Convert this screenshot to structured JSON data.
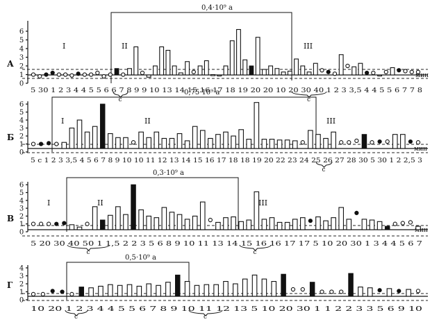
{
  "chart_data": [
    {
      "type": "bar",
      "panel_letter": "А",
      "ylim": [
        0,
        6
      ],
      "yticks": [
        "0",
        "1",
        "2",
        "3",
        "4",
        "5",
        "6"
      ],
      "bracket_label": "0,4·10⁹ а",
      "phase_labels": [
        "I",
        "II",
        "III"
      ],
      "unit_label": "мин",
      "x_tick_label": "5 30 1 2 3 4 4 5 5 6 6 7 8 9 9 10 13 14 15 16 17 18 19 20 20 10 20 30 40 1 2 3 3,5 4 4 5 5 6 7 7 8",
      "interval_labels": [
        "с",
        "с"
      ],
      "values": [
        1.0,
        0.8,
        1.0,
        1.2,
        1.0,
        1.0,
        0.9,
        1.1,
        1.0,
        1.0,
        1.2,
        0.8,
        1.0,
        1.7,
        1.0,
        1.7,
        4.2,
        1.2,
        0.7,
        2.0,
        4.2,
        3.8,
        2.0,
        1.2,
        2.5,
        1.3,
        2.0,
        2.6,
        1.0,
        0.9,
        2.0,
        4.9,
        6.2,
        2.7,
        2.0,
        5.3,
        1.6,
        2.0,
        1.7,
        1.3,
        1.4,
        2.8,
        2.0,
        1.3,
        2.3,
        1.5,
        1.3,
        1.1,
        3.3,
        2.0,
        1.9,
        2.3,
        1.2,
        1.2,
        0.9,
        1.3,
        1.8,
        1.5,
        1.4,
        1.3,
        1.3
      ],
      "marks": [
        "o",
        "o",
        "f",
        "f",
        "o",
        "o",
        "o",
        "f",
        "o",
        "o",
        "o",
        "o",
        "o",
        "F",
        "o",
        "B",
        "B",
        "o",
        "B",
        "B",
        "B",
        "B",
        "B",
        "B",
        "B",
        "o",
        "B",
        "B",
        "B",
        "B",
        "B",
        "B",
        "B",
        "B",
        "F",
        "B",
        "B",
        "B",
        "B",
        "B",
        "B",
        "B",
        "B",
        "B",
        "B",
        "o",
        "f",
        "o",
        "B",
        "o",
        "B",
        "B",
        "f",
        "o",
        "B",
        "o",
        "B",
        "f",
        "o",
        "o",
        "o"
      ]
    },
    {
      "type": "bar",
      "panel_letter": "Б",
      "ylim": [
        0,
        6
      ],
      "yticks": [
        "0",
        "1",
        "2",
        "3",
        "4",
        "5",
        "6"
      ],
      "bracket_label": "0,75·10⁹ а",
      "phase_labels": [
        "I",
        "II",
        "III"
      ],
      "unit_label": "мин",
      "x_tick_label": "5 с 1 2 3 3,5 4 5 6 7 8 9 10 10 11 12 13 14 15 16 17 18 18 19 20 22 23 24 25 26 27 28 30 5 30 1 2 2,5 3",
      "interval_labels": [
        "с"
      ],
      "values": [
        1.0,
        1.0,
        1.1,
        1.0,
        1.2,
        3.0,
        4.0,
        2.5,
        3.2,
        6.0,
        2.3,
        1.8,
        1.8,
        1.2,
        2.5,
        1.8,
        2.5,
        1.7,
        1.7,
        2.3,
        1.4,
        3.2,
        2.7,
        1.7,
        2.2,
        2.5,
        2.0,
        2.8,
        1.6,
        6.2,
        1.6,
        1.6,
        1.5,
        1.5,
        1.4,
        1.2,
        2.7,
        2.2,
        1.7,
        2.5,
        1.2,
        1.2,
        1.4,
        2.2,
        1.2,
        1.3,
        1.3,
        2.2,
        2.2,
        1.3,
        1.2
      ],
      "marks": [
        "o",
        "f",
        "f",
        "o",
        "B",
        "B",
        "B",
        "B",
        "B",
        "F",
        "B",
        "B",
        "B",
        "o",
        "B",
        "B",
        "B",
        "B",
        "B",
        "B",
        "B",
        "B",
        "B",
        "B",
        "B",
        "B",
        "B",
        "B",
        "B",
        "B",
        "B",
        "B",
        "B",
        "B",
        "B",
        "o",
        "B",
        "B",
        "B",
        "B",
        "o",
        "o",
        "o",
        "F",
        "o",
        "f",
        "o",
        "B",
        "B",
        "f",
        "o"
      ]
    },
    {
      "type": "bar",
      "panel_letter": "В",
      "ylim": [
        0,
        6
      ],
      "yticks": [
        "0",
        "1",
        "2",
        "3",
        "4",
        "5",
        "6"
      ],
      "bracket_label": "0,3·10⁹ а",
      "phase_labels": [
        "I",
        "II",
        "III"
      ],
      "unit_label": "мин",
      "x_tick_label": "5 20 30 40 50 1 1,5 2 2 3 5 6 8 9 10 11 13 14 15 16 16 17 17 5 10 20 30 1 3 4 4 5 6 7",
      "interval_labels": [
        "с",
        "с"
      ],
      "values": [
        1.0,
        1.0,
        1.0,
        1.0,
        1.1,
        0.9,
        0.6,
        1.0,
        3.2,
        1.5,
        2.1,
        3.2,
        2.2,
        6.0,
        2.8,
        2.0,
        1.8,
        3.1,
        2.5,
        2.2,
        1.6,
        2.0,
        3.8,
        1.5,
        1.2,
        1.8,
        1.9,
        1.3,
        1.5,
        5.1,
        1.6,
        1.8,
        1.2,
        1.2,
        1.6,
        1.8,
        1.4,
        1.9,
        1.4,
        1.8,
        3.1,
        1.6,
        2.4,
        1.6,
        1.5,
        1.3,
        0.7,
        1.0,
        1.1,
        1.2,
        0.7
      ],
      "marks": [
        "o",
        "o",
        "o",
        "f",
        "f",
        "B",
        "B",
        "o",
        "B",
        "F",
        "B",
        "B",
        "B",
        "F",
        "B",
        "B",
        "B",
        "B",
        "B",
        "B",
        "B",
        "B",
        "B",
        "o",
        "B",
        "B",
        "B",
        "B",
        "B",
        "B",
        "B",
        "B",
        "B",
        "B",
        "B",
        "B",
        "f",
        "B",
        "B",
        "B",
        "B",
        "B",
        "f",
        "B",
        "B",
        "B",
        "F",
        "o",
        "o",
        "o",
        "B"
      ]
    },
    {
      "type": "bar",
      "panel_letter": "Г",
      "ylim": [
        0,
        4
      ],
      "yticks": [
        "0",
        "1",
        "2",
        "3",
        "4"
      ],
      "bracket_label": "0,5·10⁹ а",
      "phase_labels": [],
      "unit_label": "",
      "x_tick_label": "10 20 1 2 3 4 4 5 5 6 7 8 9 10 11 12 13 5 10 20 30 1 1 2 2 3 3 5 6 9 10",
      "interval_labels": [
        "с",
        "с"
      ],
      "values": [
        0.7,
        0.7,
        1.1,
        1.0,
        0.7,
        1.6,
        1.5,
        1.7,
        1.9,
        1.8,
        1.9,
        1.7,
        2.0,
        1.8,
        2.2,
        3.1,
        2.3,
        1.8,
        1.9,
        1.9,
        2.3,
        2.0,
        2.6,
        3.1,
        2.6,
        2.3,
        3.2,
        1.3,
        1.3,
        2.2,
        1.0,
        1.0,
        1.0,
        3.3,
        1.6,
        1.5,
        1.2,
        1.4,
        1.1,
        1.3,
        1.1
      ],
      "marks": [
        "o",
        "o",
        "f",
        "f",
        "o",
        "F",
        "B",
        "B",
        "B",
        "B",
        "B",
        "B",
        "B",
        "B",
        "B",
        "F",
        "B",
        "B",
        "B",
        "B",
        "B",
        "B",
        "B",
        "B",
        "B",
        "B",
        "F",
        "o",
        "o",
        "F",
        "o",
        "o",
        "o",
        "F",
        "B",
        "B",
        "f",
        "B",
        "f",
        "B",
        "o"
      ]
    }
  ]
}
